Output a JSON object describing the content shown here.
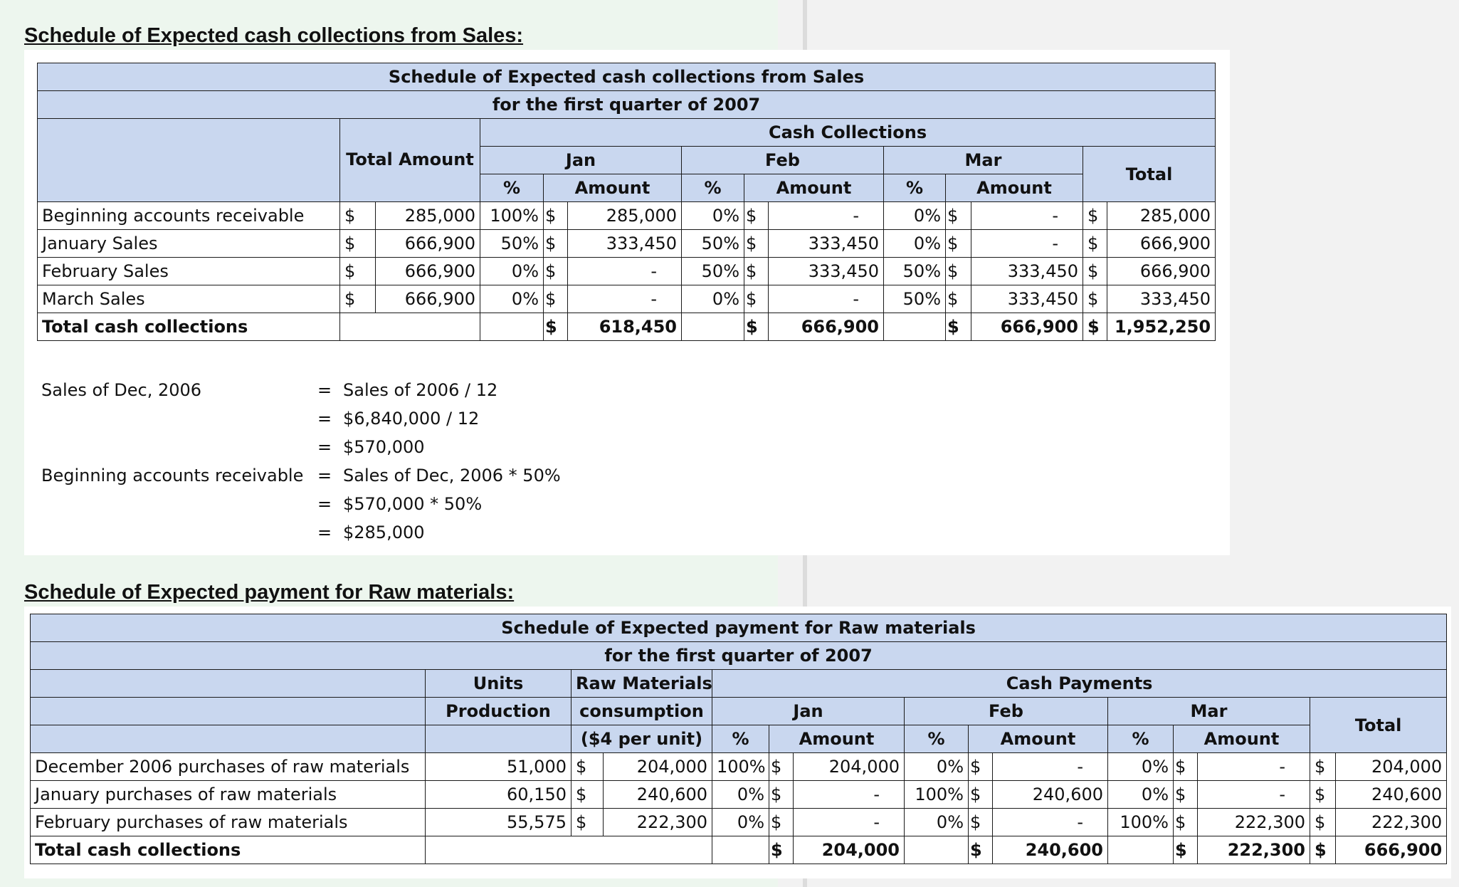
{
  "sales_section": {
    "heading": "Schedule of Expected cash collections from Sales:",
    "table": {
      "title": "Schedule of Expected cash collections from Sales",
      "subtitle": "for the first quarter of 2007",
      "group_header": "Cash Collections",
      "col_total_amount": "Total Amount",
      "col_jan": "Jan",
      "col_feb": "Feb",
      "col_mar": "Mar",
      "col_total": "Total",
      "pct": "%",
      "amount": "Amount",
      "rows": [
        {
          "label": "Beginning accounts receivable",
          "total_sym": "$",
          "total": "285,000",
          "jan_pct": "100%",
          "jan_sym": "$",
          "jan": "285,000",
          "feb_pct": "0%",
          "feb_sym": "$",
          "feb": "-",
          "mar_pct": "0%",
          "mar_sym": "$",
          "mar": "-",
          "tot_sym": "$",
          "tot": "285,000"
        },
        {
          "label": "January Sales",
          "total_sym": "$",
          "total": "666,900",
          "jan_pct": "50%",
          "jan_sym": "$",
          "jan": "333,450",
          "feb_pct": "50%",
          "feb_sym": "$",
          "feb": "333,450",
          "mar_pct": "0%",
          "mar_sym": "$",
          "mar": "-",
          "tot_sym": "$",
          "tot": "666,900"
        },
        {
          "label": "February Sales",
          "total_sym": "$",
          "total": "666,900",
          "jan_pct": "0%",
          "jan_sym": "$",
          "jan": "-",
          "feb_pct": "50%",
          "feb_sym": "$",
          "feb": "333,450",
          "mar_pct": "50%",
          "mar_sym": "$",
          "mar": "333,450",
          "tot_sym": "$",
          "tot": "666,900"
        },
        {
          "label": "March Sales",
          "total_sym": "$",
          "total": "666,900",
          "jan_pct": "0%",
          "jan_sym": "$",
          "jan": "-",
          "feb_pct": "0%",
          "feb_sym": "$",
          "feb": "-",
          "mar_pct": "50%",
          "mar_sym": "$",
          "mar": "333,450",
          "tot_sym": "$",
          "tot": "333,450"
        }
      ],
      "total_row": {
        "label": "Total cash collections",
        "jan_sym": "$",
        "jan": "618,450",
        "feb_sym": "$",
        "feb": "666,900",
        "mar_sym": "$",
        "mar": "666,900",
        "tot_sym": "$",
        "tot": "1,952,250"
      }
    },
    "calc": {
      "dec_label": "Sales of Dec, 2006",
      "bar_label": "Beginning accounts receivable",
      "eq": "=",
      "lines": [
        "Sales of 2006 / 12",
        "$6,840,000 / 12",
        "$570,000",
        "Sales of Dec, 2006 * 50%",
        "$570,000 * 50%",
        "$285,000"
      ]
    }
  },
  "raw_section": {
    "heading": "Schedule of Expected payment for Raw materials:",
    "table": {
      "title": "Schedule of Expected payment for Raw materials",
      "subtitle": "for the first quarter of 2007",
      "col_units_1": "Units",
      "col_units_2": "Production",
      "col_rm_1": "Raw Materials",
      "col_rm_2": "consumption",
      "col_rm_3": "($4 per unit)",
      "group_header": "Cash Payments",
      "col_jan": "Jan",
      "col_feb": "Feb",
      "col_mar": "Mar",
      "col_total": "Total",
      "pct": "%",
      "amount": "Amount",
      "rows": [
        {
          "label": "December 2006 purchases of raw materials",
          "units": "51,000",
          "rm_sym": "$",
          "rm": "204,000",
          "jan_pct": "100%",
          "jan_sym": "$",
          "jan": "204,000",
          "feb_pct": "0%",
          "feb_sym": "$",
          "feb": "-",
          "mar_pct": "0%",
          "mar_sym": "$",
          "mar": "-",
          "tot_sym": "$",
          "tot": "204,000"
        },
        {
          "label": "January purchases of raw materials",
          "units": "60,150",
          "rm_sym": "$",
          "rm": "240,600",
          "jan_pct": "0%",
          "jan_sym": "$",
          "jan": "-",
          "feb_pct": "100%",
          "feb_sym": "$",
          "feb": "240,600",
          "mar_pct": "0%",
          "mar_sym": "$",
          "mar": "-",
          "tot_sym": "$",
          "tot": "240,600"
        },
        {
          "label": "February purchases of raw materials",
          "units": "55,575",
          "rm_sym": "$",
          "rm": "222,300",
          "jan_pct": "0%",
          "jan_sym": "$",
          "jan": "-",
          "feb_pct": "0%",
          "feb_sym": "$",
          "feb": "-",
          "mar_pct": "100%",
          "mar_sym": "$",
          "mar": "222,300",
          "tot_sym": "$",
          "tot": "222,300"
        }
      ],
      "total_row": {
        "label": "Total cash collections",
        "jan_sym": "$",
        "jan": "204,000",
        "feb_sym": "$",
        "feb": "240,600",
        "mar_sym": "$",
        "mar": "222,300",
        "tot_sym": "$",
        "tot": "666,900"
      }
    }
  }
}
